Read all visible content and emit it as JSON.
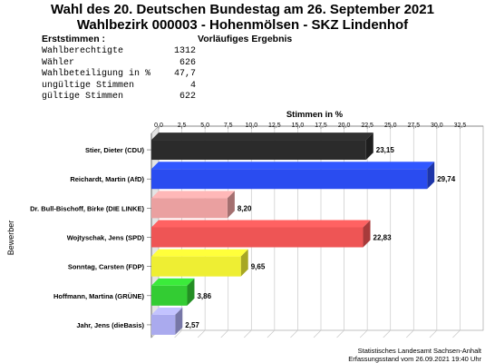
{
  "header": {
    "title_line1": "Wahl des 20. Deutschen Bundestag am 26. September 2021",
    "title_line2": "Wahlbezirk 000003 - Hohenmölsen - SKZ Lindenhof"
  },
  "summary": {
    "section_label": "Erststimmen  :",
    "status": "Vorläufiges Ergebnis",
    "rows": [
      {
        "label": "Wahlberechtigte",
        "value": "1312"
      },
      {
        "label": "Wähler",
        "value": "626"
      },
      {
        "label": "Wahlbeteiligung in %",
        "value": "47,7"
      },
      {
        "label": "ungültige Stimmen",
        "value": "4"
      },
      {
        "label": "gültige Stimmen",
        "value": "622"
      }
    ]
  },
  "chart_data": {
    "type": "bar",
    "orientation": "horizontal",
    "title": "Stimmen in %",
    "ylabel": "Bewerber",
    "xlim": [
      0,
      35
    ],
    "xticks": [
      "0,0",
      "2,5",
      "5,0",
      "7,5",
      "10,0",
      "12,5",
      "15,0",
      "17,5",
      "20,0",
      "22,5",
      "25,0",
      "27,5",
      "30,0",
      "32,5"
    ],
    "grid": true,
    "categories": [
      "Stier, Dieter (CDU)",
      "Reichardt, Martin (AfD)",
      "Dr. Bull-Bischoff, Birke (DIE LINKE)",
      "Wojtyschak, Jens (SPD)",
      "Sonntag, Carsten (FDP)",
      "Hoffmann, Martina (GRÜNE)",
      "Jahr, Jens (dieBasis)"
    ],
    "values": [
      23.15,
      29.74,
      8.2,
      22.83,
      9.65,
      3.86,
      2.57
    ],
    "labels": [
      "23,15",
      "29,74",
      "8,20",
      "22,83",
      "9,65",
      "3,86",
      "2,57"
    ],
    "colors": [
      "#2b2b2b",
      "#2a4cf0",
      "#eaa0a0",
      "#ee5555",
      "#eeee33",
      "#33cc33",
      "#aaaaee"
    ]
  },
  "footer": {
    "line1": "Statistisches Landesamt Sachsen-Anhalt",
    "line2": "Erfassungsstand vom 26.09.2021 19:40 Uhr"
  }
}
